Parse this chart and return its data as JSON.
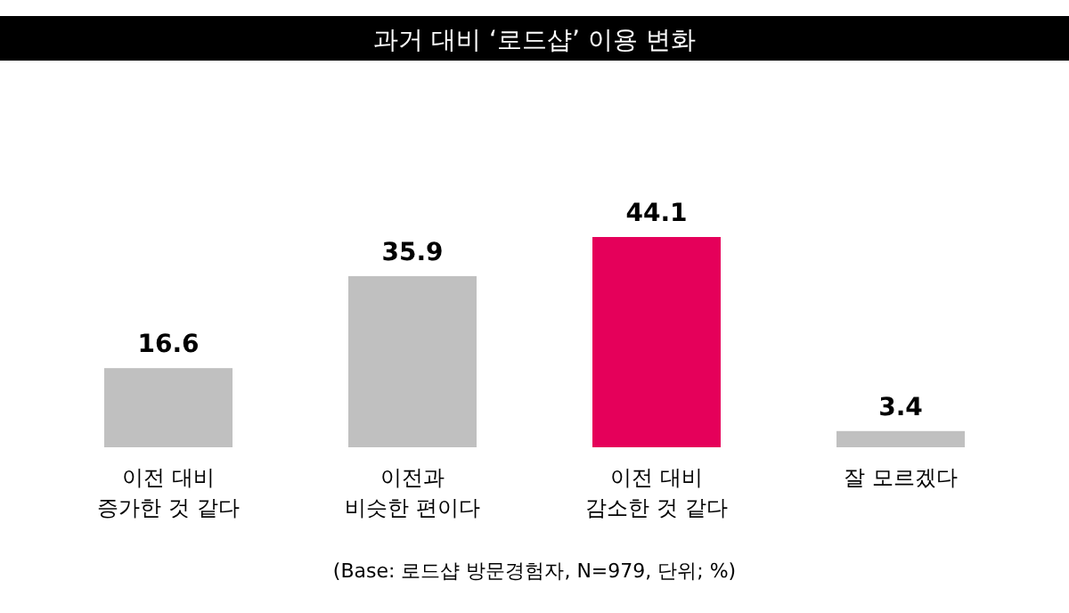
{
  "chart_data": {
    "type": "bar",
    "title": "과거 대비 ‘로드샵’ 이용 변화",
    "categories": [
      "이전 대비\n증가한 것 같다",
      "이전과\n비슷한 편이다",
      "이전 대비\n감소한 것 같다",
      "잘 모르겠다"
    ],
    "values": [
      16.6,
      35.9,
      44.1,
      3.4
    ],
    "colors": [
      "#c0c0c0",
      "#c0c0c0",
      "#e5005a",
      "#c0c0c0"
    ],
    "data_labels": true,
    "annotations": [
      "(Base: 로드샵 방문경험자, N=979, 단위; %)"
    ]
  }
}
